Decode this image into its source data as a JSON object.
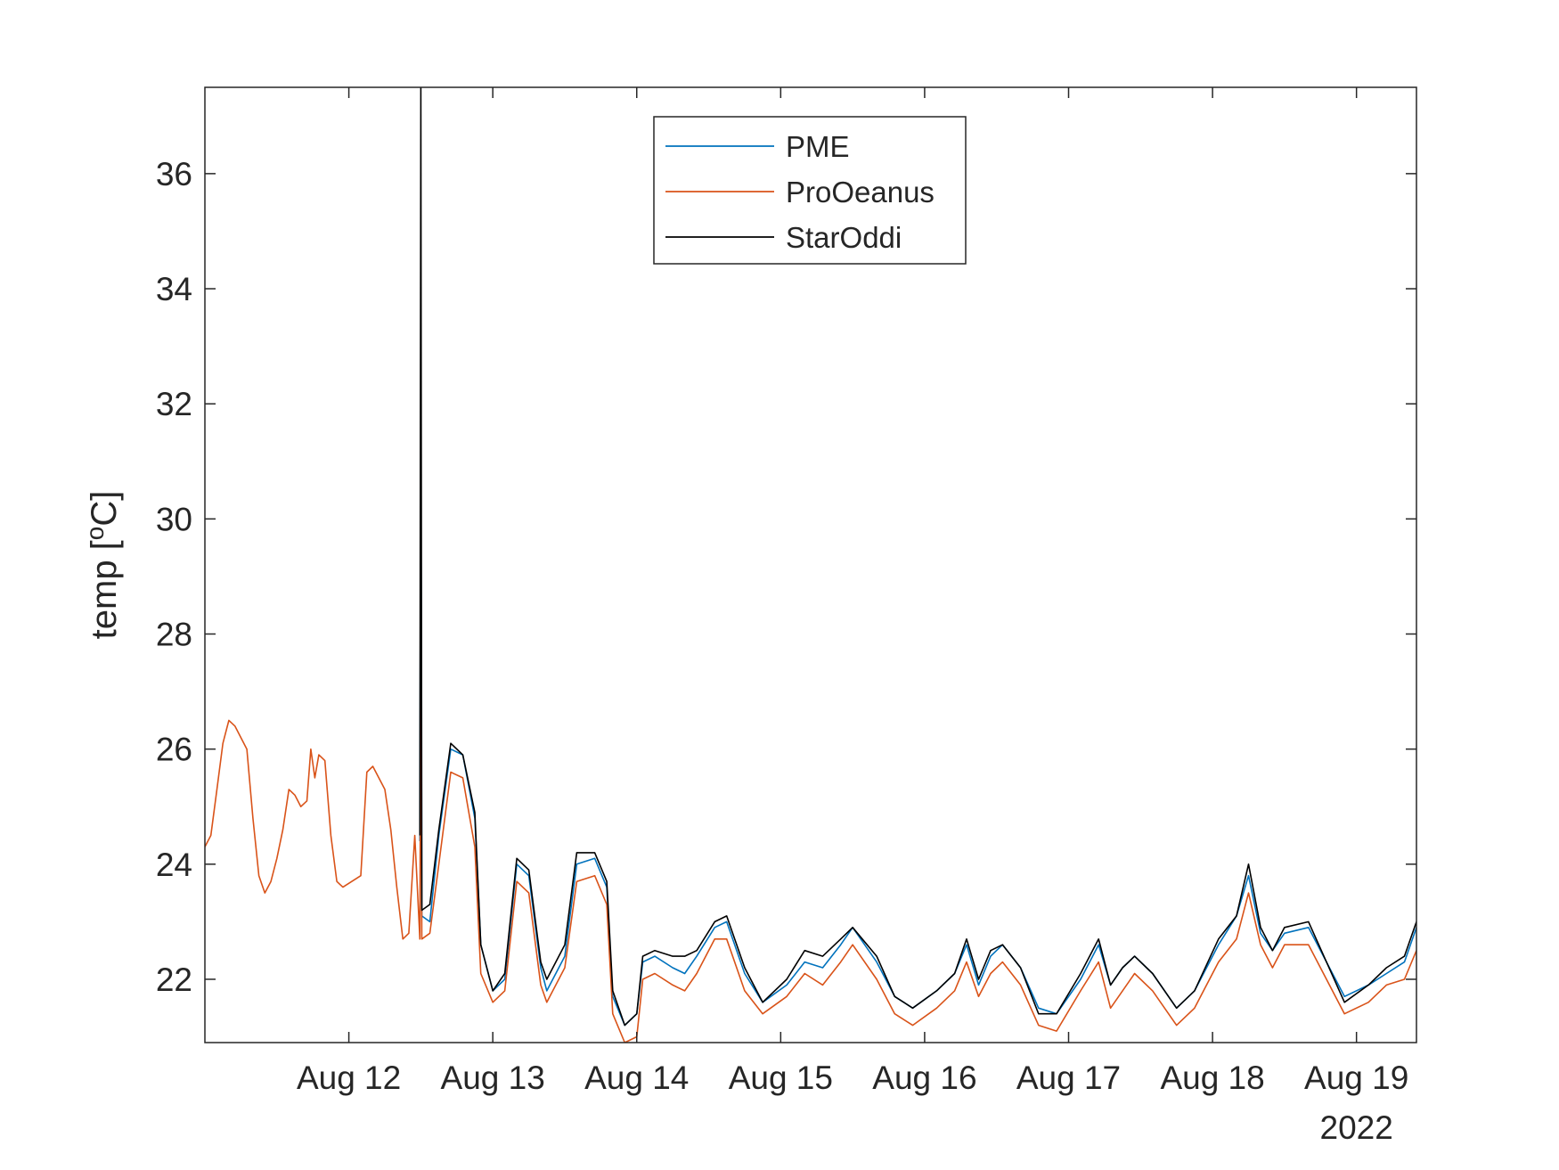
{
  "chart_data": {
    "type": "line",
    "ylabel": "temp [°C]",
    "ylabel_parts": {
      "before": "temp [",
      "sup": "o",
      "after": "C]"
    },
    "x_axis_note": "2022",
    "xlim": [
      "2022-08-11T00:00",
      "2022-08-19T10:00"
    ],
    "ylim": [
      20.9,
      37.5
    ],
    "x_ticks": [
      "Aug 12",
      "Aug 13",
      "Aug 14",
      "Aug 15",
      "Aug 16",
      "Aug 17",
      "Aug 18",
      "Aug 19"
    ],
    "x_tick_dates": [
      "2022-08-12",
      "2022-08-13",
      "2022-08-14",
      "2022-08-15",
      "2022-08-16",
      "2022-08-17",
      "2022-08-18",
      "2022-08-19"
    ],
    "y_ticks": [
      22,
      24,
      26,
      28,
      30,
      32,
      34,
      36
    ],
    "grid": false,
    "legend_position": "top-center",
    "series": [
      {
        "name": "PME",
        "color": "#0072BD",
        "points": [
          [
            "2022-08-12T11:50",
            24.4
          ],
          [
            "2022-08-12T12:00",
            31.9
          ],
          [
            "2022-08-12T12:10",
            23.1
          ],
          [
            "2022-08-12T13:30",
            23.0
          ],
          [
            "2022-08-12T15:00",
            24.5
          ],
          [
            "2022-08-12T17:00",
            26.0
          ],
          [
            "2022-08-12T19:00",
            25.9
          ],
          [
            "2022-08-12T21:00",
            24.8
          ],
          [
            "2022-08-12T22:00",
            22.6
          ],
          [
            "2022-08-13T00:00",
            21.8
          ],
          [
            "2022-08-13T02:00",
            22.0
          ],
          [
            "2022-08-13T04:00",
            24.0
          ],
          [
            "2022-08-13T06:00",
            23.8
          ],
          [
            "2022-08-13T08:00",
            22.2
          ],
          [
            "2022-08-13T09:00",
            21.8
          ],
          [
            "2022-08-13T12:00",
            22.4
          ],
          [
            "2022-08-13T14:00",
            24.0
          ],
          [
            "2022-08-13T17:00",
            24.1
          ],
          [
            "2022-08-13T19:00",
            23.6
          ],
          [
            "2022-08-13T20:00",
            21.7
          ],
          [
            "2022-08-13T22:00",
            21.2
          ],
          [
            "2022-08-14T00:00",
            21.4
          ],
          [
            "2022-08-14T01:00",
            22.3
          ],
          [
            "2022-08-14T03:00",
            22.4
          ],
          [
            "2022-08-14T06:00",
            22.2
          ],
          [
            "2022-08-14T08:00",
            22.1
          ],
          [
            "2022-08-14T10:00",
            22.4
          ],
          [
            "2022-08-14T13:00",
            22.9
          ],
          [
            "2022-08-14T15:00",
            23.0
          ],
          [
            "2022-08-14T18:00",
            22.1
          ],
          [
            "2022-08-14T21:00",
            21.6
          ],
          [
            "2022-08-15T01:00",
            21.9
          ],
          [
            "2022-08-15T04:00",
            22.3
          ],
          [
            "2022-08-15T07:00",
            22.2
          ],
          [
            "2022-08-15T10:00",
            22.6
          ],
          [
            "2022-08-15T12:00",
            22.9
          ],
          [
            "2022-08-15T16:00",
            22.3
          ],
          [
            "2022-08-15T19:00",
            21.7
          ],
          [
            "2022-08-15T22:00",
            21.5
          ],
          [
            "2022-08-16T02:00",
            21.8
          ],
          [
            "2022-08-16T05:00",
            22.1
          ],
          [
            "2022-08-16T07:00",
            22.6
          ],
          [
            "2022-08-16T09:00",
            21.9
          ],
          [
            "2022-08-16T11:00",
            22.4
          ],
          [
            "2022-08-16T13:00",
            22.6
          ],
          [
            "2022-08-16T16:00",
            22.2
          ],
          [
            "2022-08-16T19:00",
            21.5
          ],
          [
            "2022-08-16T22:00",
            21.4
          ],
          [
            "2022-08-17T02:00",
            22.0
          ],
          [
            "2022-08-17T05:00",
            22.6
          ],
          [
            "2022-08-17T07:00",
            21.9
          ],
          [
            "2022-08-17T09:00",
            22.2
          ],
          [
            "2022-08-17T11:00",
            22.4
          ],
          [
            "2022-08-17T14:00",
            22.1
          ],
          [
            "2022-08-17T18:00",
            21.5
          ],
          [
            "2022-08-17T21:00",
            21.8
          ],
          [
            "2022-08-18T01:00",
            22.6
          ],
          [
            "2022-08-18T04:00",
            23.1
          ],
          [
            "2022-08-18T06:00",
            23.8
          ],
          [
            "2022-08-18T08:00",
            22.8
          ],
          [
            "2022-08-18T10:00",
            22.5
          ],
          [
            "2022-08-18T12:00",
            22.8
          ],
          [
            "2022-08-18T16:00",
            22.9
          ],
          [
            "2022-08-18T19:00",
            22.3
          ],
          [
            "2022-08-18T22:00",
            21.7
          ],
          [
            "2022-08-19T02:00",
            21.9
          ],
          [
            "2022-08-19T05:00",
            22.1
          ],
          [
            "2022-08-19T08:00",
            22.3
          ],
          [
            "2022-08-19T10:00",
            22.9
          ]
        ]
      },
      {
        "name": "ProOeanus",
        "color": "#D95319",
        "points": [
          [
            "2022-08-11T00:00",
            24.3
          ],
          [
            "2022-08-11T01:00",
            24.5
          ],
          [
            "2022-08-11T02:00",
            25.3
          ],
          [
            "2022-08-11T03:00",
            26.1
          ],
          [
            "2022-08-11T04:00",
            26.5
          ],
          [
            "2022-08-11T05:00",
            26.4
          ],
          [
            "2022-08-11T07:00",
            26.0
          ],
          [
            "2022-08-11T08:00",
            24.8
          ],
          [
            "2022-08-11T09:00",
            23.8
          ],
          [
            "2022-08-11T10:00",
            23.5
          ],
          [
            "2022-08-11T11:00",
            23.7
          ],
          [
            "2022-08-11T12:00",
            24.1
          ],
          [
            "2022-08-11T13:00",
            24.6
          ],
          [
            "2022-08-11T14:00",
            25.3
          ],
          [
            "2022-08-11T15:00",
            25.2
          ],
          [
            "2022-08-11T16:00",
            25.0
          ],
          [
            "2022-08-11T17:00",
            25.1
          ],
          [
            "2022-08-11T17:40",
            26.0
          ],
          [
            "2022-08-11T18:20",
            25.5
          ],
          [
            "2022-08-11T19:00",
            25.9
          ],
          [
            "2022-08-11T20:00",
            25.8
          ],
          [
            "2022-08-11T21:00",
            24.5
          ],
          [
            "2022-08-11T22:00",
            23.7
          ],
          [
            "2022-08-11T23:00",
            23.6
          ],
          [
            "2022-08-12T02:00",
            23.8
          ],
          [
            "2022-08-12T03:00",
            25.6
          ],
          [
            "2022-08-12T04:00",
            25.7
          ],
          [
            "2022-08-12T06:00",
            25.3
          ],
          [
            "2022-08-12T07:00",
            24.6
          ],
          [
            "2022-08-12T08:00",
            23.6
          ],
          [
            "2022-08-12T09:00",
            22.7
          ],
          [
            "2022-08-12T10:00",
            22.8
          ],
          [
            "2022-08-12T11:00",
            24.5
          ],
          [
            "2022-08-12T11:50",
            22.7
          ],
          [
            "2022-08-12T12:00",
            27.6
          ],
          [
            "2022-08-12T12:10",
            22.7
          ],
          [
            "2022-08-12T13:30",
            22.8
          ],
          [
            "2022-08-12T15:00",
            24.0
          ],
          [
            "2022-08-12T17:00",
            25.6
          ],
          [
            "2022-08-12T19:00",
            25.5
          ],
          [
            "2022-08-12T21:00",
            24.3
          ],
          [
            "2022-08-12T22:00",
            22.1
          ],
          [
            "2022-08-13T00:00",
            21.6
          ],
          [
            "2022-08-13T02:00",
            21.8
          ],
          [
            "2022-08-13T04:00",
            23.7
          ],
          [
            "2022-08-13T06:00",
            23.5
          ],
          [
            "2022-08-13T08:00",
            21.9
          ],
          [
            "2022-08-13T09:00",
            21.6
          ],
          [
            "2022-08-13T12:00",
            22.2
          ],
          [
            "2022-08-13T14:00",
            23.7
          ],
          [
            "2022-08-13T17:00",
            23.8
          ],
          [
            "2022-08-13T19:00",
            23.3
          ],
          [
            "2022-08-13T20:00",
            21.4
          ],
          [
            "2022-08-13T22:00",
            20.9
          ],
          [
            "2022-08-14T00:00",
            21.0
          ],
          [
            "2022-08-14T01:00",
            22.0
          ],
          [
            "2022-08-14T03:00",
            22.1
          ],
          [
            "2022-08-14T06:00",
            21.9
          ],
          [
            "2022-08-14T08:00",
            21.8
          ],
          [
            "2022-08-14T10:00",
            22.1
          ],
          [
            "2022-08-14T13:00",
            22.7
          ],
          [
            "2022-08-14T15:00",
            22.7
          ],
          [
            "2022-08-14T18:00",
            21.8
          ],
          [
            "2022-08-14T21:00",
            21.4
          ],
          [
            "2022-08-15T01:00",
            21.7
          ],
          [
            "2022-08-15T04:00",
            22.1
          ],
          [
            "2022-08-15T07:00",
            21.9
          ],
          [
            "2022-08-15T10:00",
            22.3
          ],
          [
            "2022-08-15T12:00",
            22.6
          ],
          [
            "2022-08-15T16:00",
            22.0
          ],
          [
            "2022-08-15T19:00",
            21.4
          ],
          [
            "2022-08-15T22:00",
            21.2
          ],
          [
            "2022-08-16T02:00",
            21.5
          ],
          [
            "2022-08-16T05:00",
            21.8
          ],
          [
            "2022-08-16T07:00",
            22.3
          ],
          [
            "2022-08-16T09:00",
            21.7
          ],
          [
            "2022-08-16T11:00",
            22.1
          ],
          [
            "2022-08-16T13:00",
            22.3
          ],
          [
            "2022-08-16T16:00",
            21.9
          ],
          [
            "2022-08-16T19:00",
            21.2
          ],
          [
            "2022-08-16T22:00",
            21.1
          ],
          [
            "2022-08-17T02:00",
            21.8
          ],
          [
            "2022-08-17T05:00",
            22.3
          ],
          [
            "2022-08-17T07:00",
            21.5
          ],
          [
            "2022-08-17T09:00",
            21.8
          ],
          [
            "2022-08-17T11:00",
            22.1
          ],
          [
            "2022-08-17T14:00",
            21.8
          ],
          [
            "2022-08-17T18:00",
            21.2
          ],
          [
            "2022-08-17T21:00",
            21.5
          ],
          [
            "2022-08-18T01:00",
            22.3
          ],
          [
            "2022-08-18T04:00",
            22.7
          ],
          [
            "2022-08-18T06:00",
            23.5
          ],
          [
            "2022-08-18T08:00",
            22.6
          ],
          [
            "2022-08-18T10:00",
            22.2
          ],
          [
            "2022-08-18T12:00",
            22.6
          ],
          [
            "2022-08-18T16:00",
            22.6
          ],
          [
            "2022-08-18T19:00",
            22.0
          ],
          [
            "2022-08-18T22:00",
            21.4
          ],
          [
            "2022-08-19T02:00",
            21.6
          ],
          [
            "2022-08-19T05:00",
            21.9
          ],
          [
            "2022-08-19T08:00",
            22.0
          ],
          [
            "2022-08-19T10:00",
            22.5
          ]
        ]
      },
      {
        "name": "StarOddi",
        "color": "#000000",
        "points": [
          [
            "2022-08-12T11:50",
            24.5
          ],
          [
            "2022-08-12T12:00",
            37.5
          ],
          [
            "2022-08-12T12:10",
            23.2
          ],
          [
            "2022-08-12T13:30",
            23.3
          ],
          [
            "2022-08-12T15:00",
            24.6
          ],
          [
            "2022-08-12T17:00",
            26.1
          ],
          [
            "2022-08-12T19:00",
            25.9
          ],
          [
            "2022-08-12T21:00",
            24.9
          ],
          [
            "2022-08-12T22:00",
            22.6
          ],
          [
            "2022-08-13T00:00",
            21.8
          ],
          [
            "2022-08-13T02:00",
            22.1
          ],
          [
            "2022-08-13T04:00",
            24.1
          ],
          [
            "2022-08-13T06:00",
            23.9
          ],
          [
            "2022-08-13T08:00",
            22.3
          ],
          [
            "2022-08-13T09:00",
            22.0
          ],
          [
            "2022-08-13T12:00",
            22.6
          ],
          [
            "2022-08-13T14:00",
            24.2
          ],
          [
            "2022-08-13T17:00",
            24.2
          ],
          [
            "2022-08-13T19:00",
            23.7
          ],
          [
            "2022-08-13T20:00",
            21.8
          ],
          [
            "2022-08-13T22:00",
            21.2
          ],
          [
            "2022-08-14T00:00",
            21.4
          ],
          [
            "2022-08-14T01:00",
            22.4
          ],
          [
            "2022-08-14T03:00",
            22.5
          ],
          [
            "2022-08-14T06:00",
            22.4
          ],
          [
            "2022-08-14T08:00",
            22.4
          ],
          [
            "2022-08-14T10:00",
            22.5
          ],
          [
            "2022-08-14T13:00",
            23.0
          ],
          [
            "2022-08-14T15:00",
            23.1
          ],
          [
            "2022-08-14T18:00",
            22.2
          ],
          [
            "2022-08-14T21:00",
            21.6
          ],
          [
            "2022-08-15T01:00",
            22.0
          ],
          [
            "2022-08-15T04:00",
            22.5
          ],
          [
            "2022-08-15T07:00",
            22.4
          ],
          [
            "2022-08-15T10:00",
            22.7
          ],
          [
            "2022-08-15T12:00",
            22.9
          ],
          [
            "2022-08-15T16:00",
            22.4
          ],
          [
            "2022-08-15T19:00",
            21.7
          ],
          [
            "2022-08-15T22:00",
            21.5
          ],
          [
            "2022-08-16T02:00",
            21.8
          ],
          [
            "2022-08-16T05:00",
            22.1
          ],
          [
            "2022-08-16T07:00",
            22.7
          ],
          [
            "2022-08-16T09:00",
            22.0
          ],
          [
            "2022-08-16T11:00",
            22.5
          ],
          [
            "2022-08-16T13:00",
            22.6
          ],
          [
            "2022-08-16T16:00",
            22.2
          ],
          [
            "2022-08-16T19:00",
            21.4
          ],
          [
            "2022-08-16T22:00",
            21.4
          ],
          [
            "2022-08-17T02:00",
            22.1
          ],
          [
            "2022-08-17T05:00",
            22.7
          ],
          [
            "2022-08-17T07:00",
            21.9
          ],
          [
            "2022-08-17T09:00",
            22.2
          ],
          [
            "2022-08-17T11:00",
            22.4
          ],
          [
            "2022-08-17T14:00",
            22.1
          ],
          [
            "2022-08-17T18:00",
            21.5
          ],
          [
            "2022-08-17T21:00",
            21.8
          ],
          [
            "2022-08-18T01:00",
            22.7
          ],
          [
            "2022-08-18T04:00",
            23.1
          ],
          [
            "2022-08-18T06:00",
            24.0
          ],
          [
            "2022-08-18T08:00",
            22.9
          ],
          [
            "2022-08-18T10:00",
            22.5
          ],
          [
            "2022-08-18T12:00",
            22.9
          ],
          [
            "2022-08-18T16:00",
            23.0
          ],
          [
            "2022-08-18T19:00",
            22.3
          ],
          [
            "2022-08-18T22:00",
            21.6
          ],
          [
            "2022-08-19T02:00",
            21.9
          ],
          [
            "2022-08-19T05:00",
            22.2
          ],
          [
            "2022-08-19T08:00",
            22.4
          ],
          [
            "2022-08-19T10:00",
            23.0
          ]
        ]
      }
    ]
  }
}
